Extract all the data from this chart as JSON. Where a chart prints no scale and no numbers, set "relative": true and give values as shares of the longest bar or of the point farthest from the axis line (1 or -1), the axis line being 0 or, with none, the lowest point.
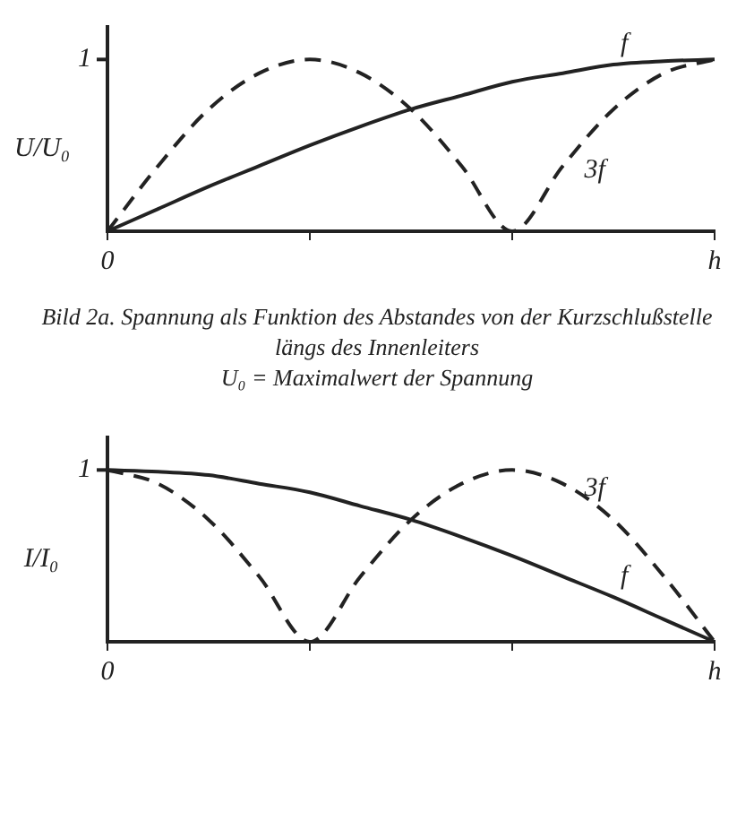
{
  "chart_data": [
    {
      "type": "line",
      "relative": true,
      "ylabel": "U/U₀",
      "categories": [
        "0",
        null,
        null,
        null,
        null,
        null,
        null,
        null,
        null,
        null,
        null,
        null,
        "h"
      ],
      "grid": false,
      "series": [
        {
          "name": "f",
          "color": "#222222",
          "line_style": "solid",
          "values": [
            0,
            0.13,
            0.26,
            0.38,
            0.5,
            0.61,
            0.71,
            0.79,
            0.87,
            0.92,
            0.97,
            0.99,
            1
          ]
        },
        {
          "name": "3f",
          "color": "#222222",
          "line_style": "dashed",
          "values": [
            0,
            0.38,
            0.71,
            0.92,
            1,
            0.92,
            0.71,
            0.38,
            0,
            0.38,
            0.71,
            0.92,
            1
          ]
        }
      ],
      "annotations": [
        "1",
        "Bild 2a. Spannung als Funktion des Abstandes von der Kurzschlußstelle längs des Innenleiters",
        "U₀ = Maximalwert der Spannung"
      ]
    },
    {
      "type": "line",
      "relative": true,
      "ylabel": "I/I₀",
      "categories": [
        "0",
        null,
        null,
        null,
        null,
        null,
        null,
        null,
        null,
        null,
        null,
        null,
        "h"
      ],
      "grid": false,
      "series": [
        {
          "name": "f",
          "color": "#222222",
          "line_style": "solid",
          "values": [
            1,
            0.99,
            0.97,
            0.92,
            0.87,
            0.79,
            0.71,
            0.61,
            0.5,
            0.38,
            0.26,
            0.13,
            0
          ]
        },
        {
          "name": "3f",
          "color": "#222222",
          "line_style": "dashed",
          "values": [
            1,
            0.92,
            0.71,
            0.38,
            0,
            0.38,
            0.71,
            0.92,
            1,
            0.92,
            0.71,
            0.38,
            0
          ]
        }
      ],
      "annotations": [
        "1"
      ]
    }
  ]
}
